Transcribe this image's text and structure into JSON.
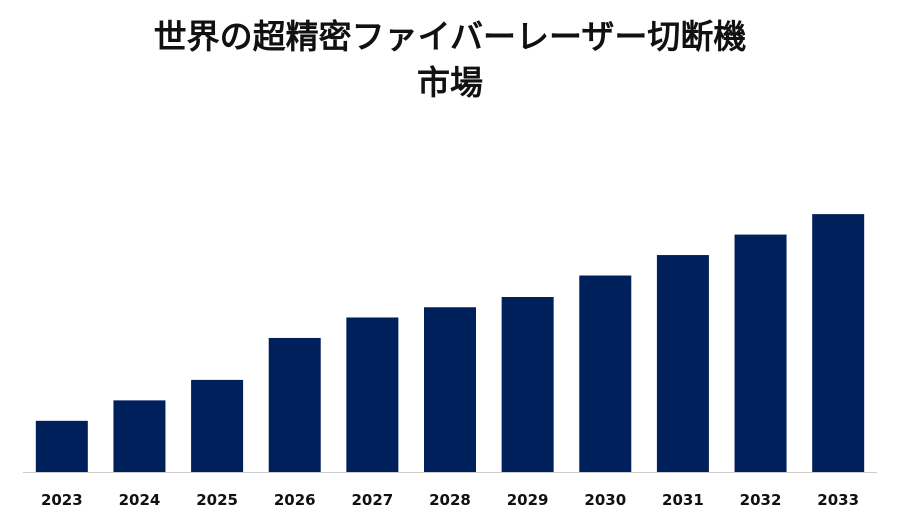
{
  "chart_data": {
    "type": "bar",
    "title_lines": [
      "世界の超精密ファイバーレーザー切断機",
      "市場"
    ],
    "categories": [
      "2023",
      "2024",
      "2025",
      "2026",
      "2027",
      "2028",
      "2029",
      "2030",
      "2031",
      "2032",
      "2033"
    ],
    "values": [
      5.0,
      7.0,
      9.0,
      13.1,
      15.1,
      16.1,
      17.1,
      19.2,
      21.2,
      23.2,
      25.2
    ],
    "xlabel": "",
    "ylabel": "",
    "ylim": [
      0,
      30
    ],
    "grid": false,
    "legend": "none",
    "bar_color": "#00205b"
  }
}
